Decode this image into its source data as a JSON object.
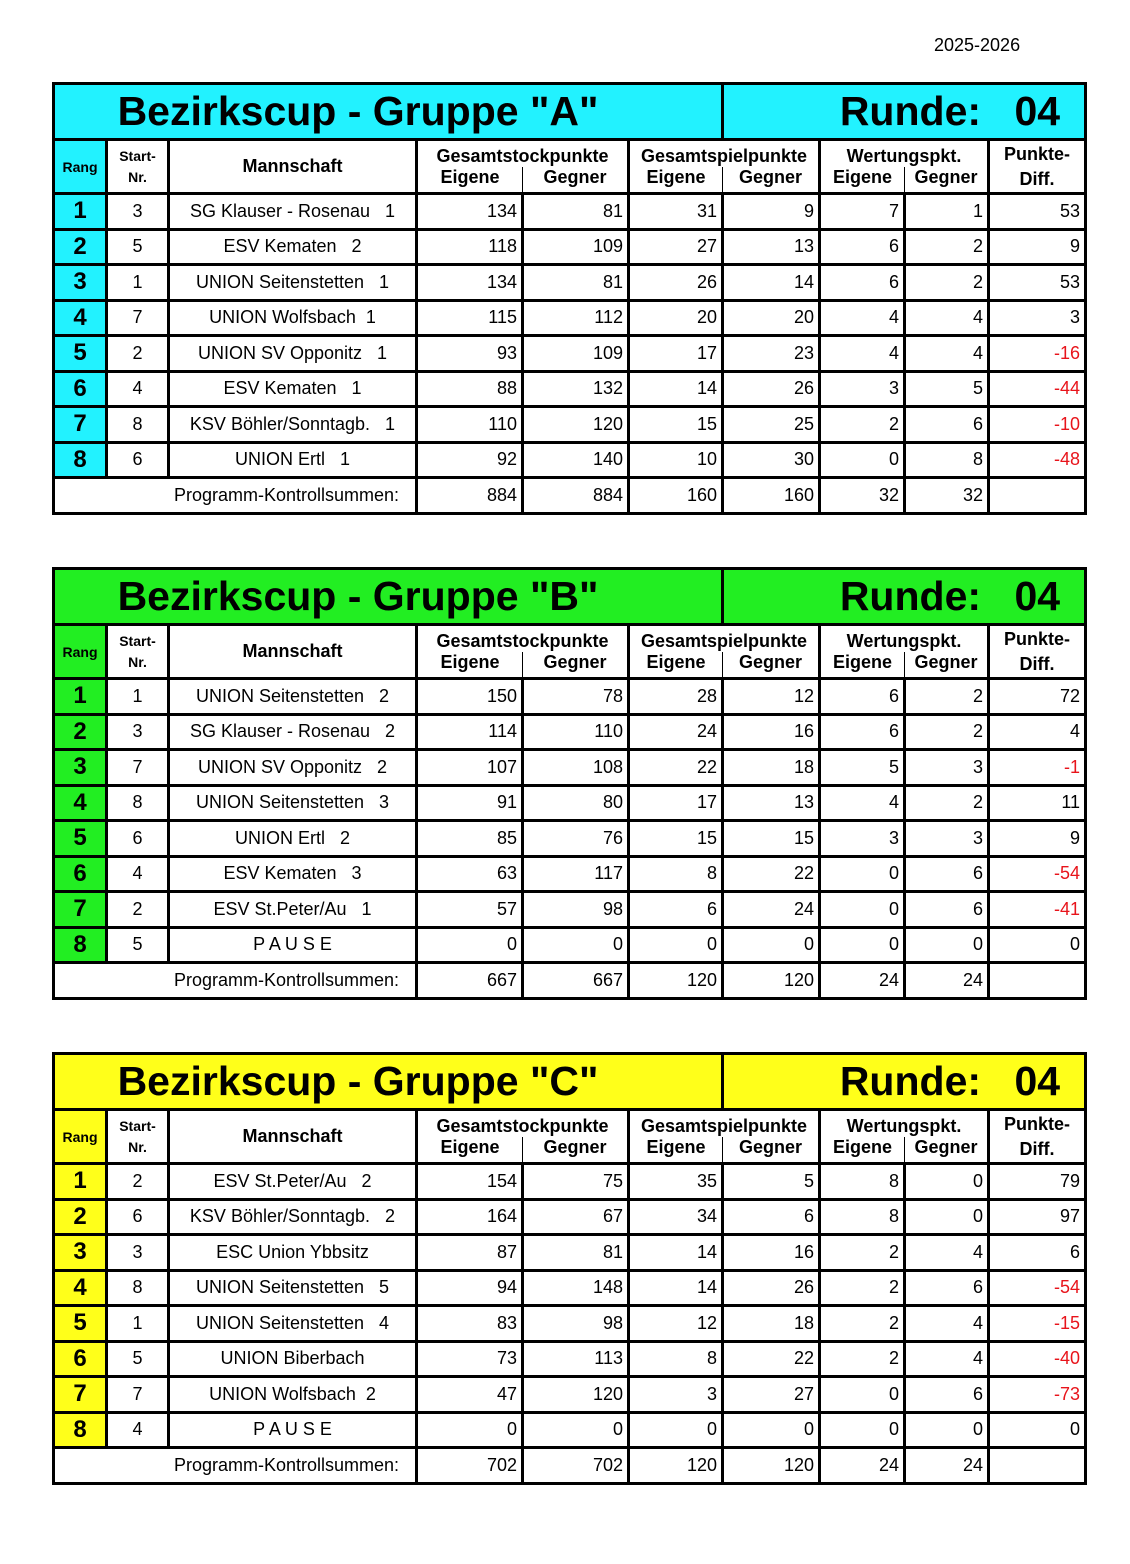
{
  "season": "2025-2026",
  "headers": {
    "rang": "Rang",
    "start_1": "Start-",
    "start_2": "Nr.",
    "mannschaft": "Mannschaft",
    "stock": "Gesamtstockpunkte",
    "spiel": "Gesamtspielpunkte",
    "wertung": "Wertungspkt.",
    "eigene": "Eigene",
    "gegner": "Gegner",
    "diff_1": "Punkte-",
    "diff_2": "Diff."
  },
  "sum_label": "Programm-Kontrollsummen:",
  "negative_color": "#e8141b",
  "groups": [
    {
      "title": "Bezirkscup - Gruppe \"A\"",
      "runde_label": "Runde:",
      "runde": "04",
      "color": "#22f2ff",
      "rows": [
        [
          "1",
          "3",
          "SG Klauser - Rosenau   1",
          "134",
          "81",
          "31",
          "9",
          "7",
          "1",
          "53"
        ],
        [
          "2",
          "5",
          "ESV Kematen   2",
          "118",
          "109",
          "27",
          "13",
          "6",
          "2",
          "9"
        ],
        [
          "3",
          "1",
          "UNION Seitenstetten   1",
          "134",
          "81",
          "26",
          "14",
          "6",
          "2",
          "53"
        ],
        [
          "4",
          "7",
          "UNION Wolfsbach  1",
          "115",
          "112",
          "20",
          "20",
          "4",
          "4",
          "3"
        ],
        [
          "5",
          "2",
          "UNION SV Opponitz   1",
          "93",
          "109",
          "17",
          "23",
          "4",
          "4",
          "-16"
        ],
        [
          "6",
          "4",
          "ESV Kematen   1",
          "88",
          "132",
          "14",
          "26",
          "3",
          "5",
          "-44"
        ],
        [
          "7",
          "8",
          "KSV Böhler/Sonntagb.   1",
          "110",
          "120",
          "15",
          "25",
          "2",
          "6",
          "-10"
        ],
        [
          "8",
          "6",
          "UNION Ertl   1",
          "92",
          "140",
          "10",
          "30",
          "0",
          "8",
          "-48"
        ]
      ],
      "sums": [
        "884",
        "884",
        "160",
        "160",
        "32",
        "32"
      ]
    },
    {
      "title": "Bezirkscup - Gruppe \"B\"",
      "runde_label": "Runde:",
      "runde": "04",
      "color": "#22ee22",
      "rows": [
        [
          "1",
          "1",
          "UNION Seitenstetten   2",
          "150",
          "78",
          "28",
          "12",
          "6",
          "2",
          "72"
        ],
        [
          "2",
          "3",
          "SG Klauser - Rosenau   2",
          "114",
          "110",
          "24",
          "16",
          "6",
          "2",
          "4"
        ],
        [
          "3",
          "7",
          "UNION SV Opponitz   2",
          "107",
          "108",
          "22",
          "18",
          "5",
          "3",
          "-1"
        ],
        [
          "4",
          "8",
          "UNION Seitenstetten   3",
          "91",
          "80",
          "17",
          "13",
          "4",
          "2",
          "11"
        ],
        [
          "5",
          "6",
          "UNION Ertl   2",
          "85",
          "76",
          "15",
          "15",
          "3",
          "3",
          "9"
        ],
        [
          "6",
          "4",
          "ESV Kematen   3",
          "63",
          "117",
          "8",
          "22",
          "0",
          "6",
          "-54"
        ],
        [
          "7",
          "2",
          "ESV St.Peter/Au   1",
          "57",
          "98",
          "6",
          "24",
          "0",
          "6",
          "-41"
        ],
        [
          "8",
          "5",
          "P A U S E",
          "0",
          "0",
          "0",
          "0",
          "0",
          "0",
          "0"
        ]
      ],
      "sums": [
        "667",
        "667",
        "120",
        "120",
        "24",
        "24"
      ]
    },
    {
      "title": "Bezirkscup - Gruppe \"C\"",
      "runde_label": "Runde:",
      "runde": "04",
      "color": "#ffff1a",
      "rows": [
        [
          "1",
          "2",
          "ESV St.Peter/Au   2",
          "154",
          "75",
          "35",
          "5",
          "8",
          "0",
          "79"
        ],
        [
          "2",
          "6",
          "KSV Böhler/Sonntagb.   2",
          "164",
          "67",
          "34",
          "6",
          "8",
          "0",
          "97"
        ],
        [
          "3",
          "3",
          "ESC Union Ybbsitz",
          "87",
          "81",
          "14",
          "16",
          "2",
          "4",
          "6"
        ],
        [
          "4",
          "8",
          "UNION Seitenstetten   5",
          "94",
          "148",
          "14",
          "26",
          "2",
          "6",
          "-54"
        ],
        [
          "5",
          "1",
          "UNION Seitenstetten   4",
          "83",
          "98",
          "12",
          "18",
          "2",
          "4",
          "-15"
        ],
        [
          "6",
          "5",
          "UNION Biberbach",
          "73",
          "113",
          "8",
          "22",
          "2",
          "4",
          "-40"
        ],
        [
          "7",
          "7",
          "UNION Wolfsbach  2",
          "47",
          "120",
          "3",
          "27",
          "0",
          "6",
          "-73"
        ],
        [
          "8",
          "4",
          "P A U S E",
          "0",
          "0",
          "0",
          "0",
          "0",
          "0",
          "0"
        ]
      ],
      "sums": [
        "702",
        "702",
        "120",
        "120",
        "24",
        "24"
      ]
    }
  ]
}
